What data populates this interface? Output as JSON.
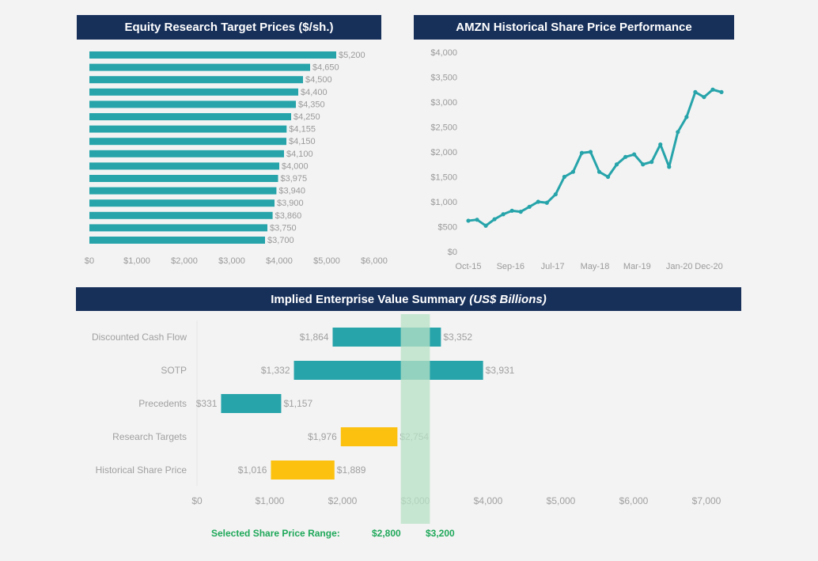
{
  "headers": {
    "research": "Equity Research Target Prices ($/sh.)",
    "history": "AMZN Historical Share Price Performance",
    "summary_main": "Implied Enterprise Value Summary",
    "summary_unit": "(US$ Billions)"
  },
  "chart_data": [
    {
      "type": "bar",
      "orientation": "horizontal",
      "title": "Equity Research Target Prices ($/sh.)",
      "values": [
        5200,
        4650,
        4500,
        4400,
        4350,
        4250,
        4155,
        4150,
        4100,
        4000,
        3975,
        3940,
        3900,
        3860,
        3750,
        3700
      ],
      "labels": [
        "$5,200",
        "$4,650",
        "$4,500",
        "$4,400",
        "$4,350",
        "$4,250",
        "$4,155",
        "$4,150",
        "$4,100",
        "$4,000",
        "$3,975",
        "$3,940",
        "$3,900",
        "$3,860",
        "$3,750",
        "$3,700"
      ],
      "xlim": [
        0,
        6000
      ],
      "xticks": [
        0,
        1000,
        2000,
        3000,
        4000,
        5000,
        6000
      ],
      "xtick_labels": [
        "$0",
        "$1,000",
        "$2,000",
        "$3,000",
        "$4,000",
        "$5,000",
        "$6,000"
      ],
      "color": "#26a4aa"
    },
    {
      "type": "line",
      "title": "AMZN Historical Share Price Performance",
      "x": [
        "Oct-15",
        "Jan-16",
        "Feb-16",
        "Apr-16",
        "Jul-16",
        "Oct-16",
        "Jan-17",
        "Apr-17",
        "Jul-17",
        "Oct-17",
        "Dec-17",
        "Mar-18",
        "May-18",
        "Aug-18",
        "Sep-18",
        "Oct-18",
        "Dec-18",
        "Mar-19",
        "May-19",
        "Jul-19",
        "Oct-19",
        "Dec-19",
        "Feb-20",
        "Mar-20",
        "Apr-20",
        "Jun-20",
        "Jul-20",
        "Sep-20",
        "Oct-20",
        "Dec-20"
      ],
      "y": [
        620,
        640,
        520,
        650,
        750,
        820,
        800,
        900,
        1000,
        980,
        1150,
        1500,
        1600,
        1980,
        2000,
        1600,
        1500,
        1750,
        1900,
        1950,
        1750,
        1800,
        2150,
        1700,
        2400,
        2700,
        3200,
        3100,
        3250,
        3200
      ],
      "ylim": [
        0,
        4000
      ],
      "yticks": [
        0,
        500,
        1000,
        1500,
        2000,
        2500,
        3000,
        3500,
        4000
      ],
      "ytick_labels": [
        "$0",
        "$500",
        "$1,000",
        "$1,500",
        "$2,000",
        "$2,500",
        "$3,000",
        "$3,500",
        "$4,000"
      ],
      "xtick_labels": [
        "Oct-15",
        "Sep-16",
        "Jul-17",
        "May-18",
        "Mar-19",
        "Jan-20",
        "Dec-20"
      ],
      "color": "#26a4aa"
    },
    {
      "type": "bar",
      "subtype": "floating-range",
      "title": "Implied Enterprise Value Summary (US$ Billions)",
      "categories": [
        "Discounted Cash Flow",
        "SOTP",
        "Precedents",
        "Research Targets",
        "Historical Share Price"
      ],
      "low": [
        1864,
        1332,
        331,
        1976,
        1016
      ],
      "high": [
        3352,
        3931,
        1157,
        2754,
        1889
      ],
      "low_labels": [
        "$1,864",
        "$1,332",
        "$331",
        "$1,976",
        "$1,016"
      ],
      "high_labels": [
        "$3,352",
        "$3,931",
        "$1,157",
        "$2,754",
        "$1,889"
      ],
      "colors": [
        "#26a4aa",
        "#26a4aa",
        "#26a4aa",
        "#fcc10f",
        "#fcc10f"
      ],
      "xlim": [
        0,
        7000
      ],
      "xticks": [
        0,
        1000,
        2000,
        3000,
        4000,
        5000,
        6000,
        7000
      ],
      "xtick_labels": [
        "$0",
        "$1,000",
        "$2,000",
        "$3,000",
        "$4,000",
        "$5,000",
        "$6,000",
        "$7,000"
      ],
      "selected_range": [
        2800,
        3200
      ],
      "selected_color": "#b8e2c6"
    }
  ],
  "selected": {
    "label": "Selected Share Price Range:",
    "low": "$2,800",
    "high": "$3,200"
  }
}
